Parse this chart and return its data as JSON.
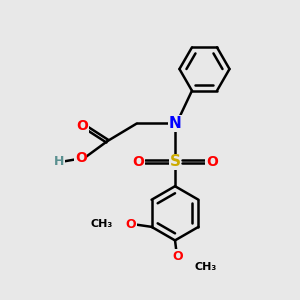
{
  "bg_color": "#e8e8e8",
  "atom_colors": {
    "C": "#000000",
    "H": "#5a9090",
    "N": "#0000ff",
    "O": "#ff0000",
    "S": "#ccaa00"
  },
  "bond_color": "#000000",
  "bond_width": 1.8,
  "figsize": [
    3.0,
    3.0
  ],
  "dpi": 100
}
